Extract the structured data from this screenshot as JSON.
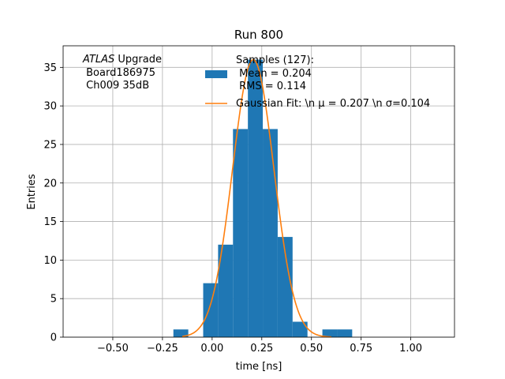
{
  "chart_data": {
    "type": "bar",
    "title": "Run 800",
    "xlabel": "time [ns]",
    "ylabel": "Entries",
    "xlim": [
      -0.75,
      1.22
    ],
    "ylim": [
      0,
      37.8
    ],
    "grid": true,
    "xticks": [
      -0.5,
      -0.25,
      0.0,
      0.25,
      0.5,
      0.75,
      1.0
    ],
    "xtick_labels": [
      "−0.50",
      "−0.25",
      "0.00",
      "0.25",
      "0.50",
      "0.75",
      "1.00"
    ],
    "yticks": [
      0,
      5,
      10,
      15,
      20,
      25,
      30,
      35
    ],
    "ytick_labels": [
      "0",
      "5",
      "10",
      "15",
      "20",
      "25",
      "30",
      "35"
    ],
    "histogram": {
      "color": "#1f77b4",
      "bins": [
        {
          "x0": -0.195,
          "x1": -0.12,
          "count": 1
        },
        {
          "x0": -0.045,
          "x1": 0.03,
          "count": 7
        },
        {
          "x0": 0.03,
          "x1": 0.105,
          "count": 12
        },
        {
          "x0": 0.105,
          "x1": 0.18,
          "count": 27
        },
        {
          "x0": 0.18,
          "x1": 0.255,
          "count": 36
        },
        {
          "x0": 0.255,
          "x1": 0.33,
          "count": 27
        },
        {
          "x0": 0.33,
          "x1": 0.405,
          "count": 13
        },
        {
          "x0": 0.405,
          "x1": 0.48,
          "count": 2
        },
        {
          "x0": 0.555,
          "x1": 0.63,
          "count": 1
        },
        {
          "x0": 0.63,
          "x1": 0.705,
          "count": 1
        }
      ]
    },
    "fit": {
      "type": "gaussian",
      "color": "#ff7f0e",
      "amplitude": 36.0,
      "mu": 0.207,
      "sigma": 0.104,
      "x_range": [
        -0.15,
        0.6
      ]
    },
    "legend": {
      "placement": "top-right",
      "entries": [
        {
          "kind": "patch",
          "label_lines": [
            "Samples (127):",
            " Mean = 0.204",
            " RMS = 0.114"
          ]
        },
        {
          "kind": "line",
          "label_lines": [
            "Gaussian Fit: \\n μ = 0.207 \\n σ=0.104"
          ]
        }
      ]
    },
    "annotation": {
      "lines": [
        "ATLAS Upgrade",
        " Board186975",
        " Ch009 35dB"
      ]
    }
  }
}
